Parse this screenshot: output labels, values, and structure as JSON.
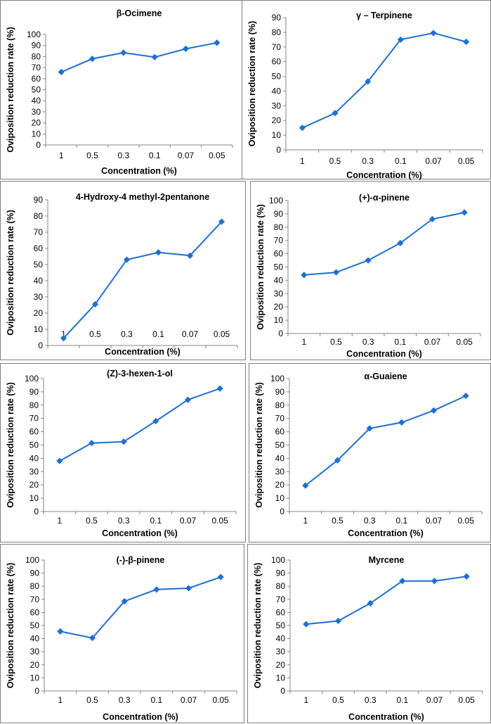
{
  "chart_data": [
    {
      "type": "line",
      "title": "β-Ocimene",
      "xlabel": "Concentration (%)",
      "ylabel": "Oviposition reduction rate (%)",
      "categories": [
        "1",
        "0.5",
        "0.3",
        "0.1",
        "0.07",
        "0.05"
      ],
      "values": [
        66,
        78,
        83.5,
        79.5,
        87,
        92.5
      ],
      "ylim": [
        0,
        100
      ],
      "yticks": [
        "0",
        "10",
        "20",
        "30",
        "40",
        "50",
        "60",
        "70",
        "80",
        "90",
        "100"
      ]
    },
    {
      "type": "line",
      "title": "γ – Terpinene",
      "xlabel": "Concentration (%)",
      "ylabel": "Oviposition reduction rate (%)",
      "categories": [
        "1",
        "0.5",
        "0.3",
        "0.1",
        "0.07",
        "0.05"
      ],
      "values": [
        15,
        25,
        46.5,
        75,
        79.5,
        73.5
      ],
      "ylim": [
        0,
        90
      ],
      "yticks": [
        "0",
        "10",
        "20",
        "30",
        "40",
        "50",
        "60",
        "70",
        "80",
        "90"
      ]
    },
    {
      "type": "line",
      "title": "4-Hydroxy-4 methyl-2pentanone",
      "xlabel": "Concentration (%)",
      "ylabel": "Oviposition reduction rate (%)",
      "categories": [
        "1",
        "0.5",
        "0.3",
        "0.1",
        "0.07",
        "0.05"
      ],
      "values": [
        4.5,
        25.5,
        53,
        57.5,
        55.5,
        76.5
      ],
      "ylim": [
        0,
        90
      ],
      "yticks": [
        "0",
        "10",
        "20",
        "30",
        "40",
        "50",
        "60",
        "70",
        "80",
        "90"
      ]
    },
    {
      "type": "line",
      "title": "(+)-α-pinene",
      "xlabel": "Concentration (%)",
      "ylabel": "Oviposition reduction rate (%)",
      "categories": [
        "1",
        "0.5",
        "0.3",
        "0.1",
        "0.07",
        "0.05"
      ],
      "values": [
        44,
        46,
        55,
        68,
        86,
        91
      ],
      "ylim": [
        0,
        100
      ],
      "yticks": [
        "0",
        "10",
        "20",
        "30",
        "40",
        "50",
        "60",
        "70",
        "80",
        "90",
        "100"
      ]
    },
    {
      "type": "line",
      "title": "(Z)-3-hexen-1-ol",
      "xlabel": "Concentration (%)",
      "ylabel": "Oviposition reduction rate (%)",
      "categories": [
        "1",
        "0.5",
        "0.3",
        "0.1",
        "0.07",
        "0.05"
      ],
      "values": [
        38,
        51.5,
        52.5,
        68,
        84,
        92.5
      ],
      "ylim": [
        0,
        100
      ],
      "yticks": [
        "0",
        "10",
        "20",
        "30",
        "40",
        "50",
        "60",
        "70",
        "80",
        "90",
        "100"
      ]
    },
    {
      "type": "line",
      "title": "α-Guaiene",
      "xlabel": "Concentration (%)",
      "ylabel": "Oviposition reduction rate (%)",
      "categories": [
        "1",
        "0.5",
        "0.3",
        "0.1",
        "0.07",
        "0.05"
      ],
      "values": [
        19.5,
        38.5,
        62.5,
        67,
        76,
        87
      ],
      "ylim": [
        0,
        100
      ],
      "yticks": [
        "0",
        "10",
        "20",
        "30",
        "40",
        "50",
        "60",
        "70",
        "80",
        "90",
        "100"
      ]
    },
    {
      "type": "line",
      "title": "(-)-β-pinene",
      "xlabel": "Concentration (%)",
      "ylabel": "Oviposition reduction rate (%)",
      "categories": [
        "1",
        "0.5",
        "0.3",
        "0.1",
        "0.07",
        "0.05"
      ],
      "values": [
        45.5,
        40.5,
        68.5,
        77.5,
        78.5,
        87
      ],
      "ylim": [
        0,
        100
      ],
      "yticks": [
        "0",
        "10",
        "20",
        "30",
        "40",
        "50",
        "60",
        "70",
        "80",
        "90",
        "100"
      ]
    },
    {
      "type": "line",
      "title": "Myrcene",
      "xlabel": "Concentration (%)",
      "ylabel": "Oviposition reduction rate (%)",
      "categories": [
        "1",
        "0.5",
        "0.3",
        "0.1",
        "0.07",
        "0.05"
      ],
      "values": [
        51,
        53.5,
        67,
        84,
        84,
        87.5
      ],
      "ylim": [
        0,
        100
      ],
      "yticks": [
        "0",
        "10",
        "20",
        "30",
        "40",
        "50",
        "60",
        "70",
        "80",
        "90",
        "100"
      ]
    }
  ],
  "colors": {
    "series": "#1f6fd2",
    "axis": "#868686",
    "border": "#7f7f7f"
  }
}
